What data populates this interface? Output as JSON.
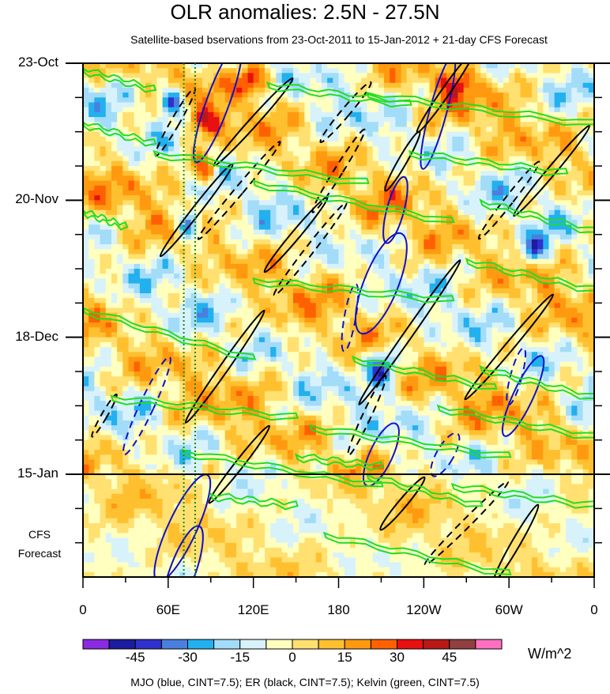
{
  "chart_data": {
    "type": "heatmap",
    "title": "OLR anomalies: 2.5N - 27.5N",
    "subtitle": "Satellite-based bservations from 23-Oct-2011 to 15-Jan-2012 + 21-day CFS Forecast",
    "x_ticks": [
      {
        "label": "0",
        "lon": 0
      },
      {
        "label": "60E",
        "lon": 60
      },
      {
        "label": "120E",
        "lon": 120
      },
      {
        "label": "180",
        "lon": 180
      },
      {
        "label": "120W",
        "lon": 240
      },
      {
        "label": "60W",
        "lon": 300
      },
      {
        "label": "0",
        "lon": 360
      }
    ],
    "y_ticks": [
      {
        "label": "23-Oct",
        "day": 0
      },
      {
        "label": "20-Nov",
        "day": 28
      },
      {
        "label": "18-Dec",
        "day": 56
      },
      {
        "label": "15-Jan",
        "day": 84
      }
    ],
    "y_range_days": [
      0,
      105
    ],
    "x_range_lon": [
      0,
      360
    ],
    "forecast_start_day": 84,
    "forecast_label_line1": "CFS",
    "forecast_label_line2": "Forecast",
    "colorbar": {
      "units": "W/m^2",
      "tick_labels": [
        "-45",
        "-30",
        "-15",
        "0",
        "15",
        "30",
        "45"
      ],
      "colors": [
        "#8a2be2",
        "#1c1c9e",
        "#3030cc",
        "#4a7fdf",
        "#22b0ee",
        "#a2dcf8",
        "#d8f2fc",
        "#ffffc0",
        "#ffe070",
        "#ffc030",
        "#ff9a10",
        "#ff6000",
        "#e81010",
        "#b81818",
        "#904040",
        "#ff70c0"
      ]
    },
    "footer": "MJO (blue, CINT=7.5); ER (black, CINT=7.5); Kelvin (green, CINT=7.5)",
    "reference_lines_lon": [
      71,
      79
    ],
    "series": [
      {
        "name": "MJO",
        "color": "#1010c8"
      },
      {
        "name": "ER",
        "color": "#000000"
      },
      {
        "name": "Kelvin",
        "color": "#22dd22"
      }
    ]
  }
}
